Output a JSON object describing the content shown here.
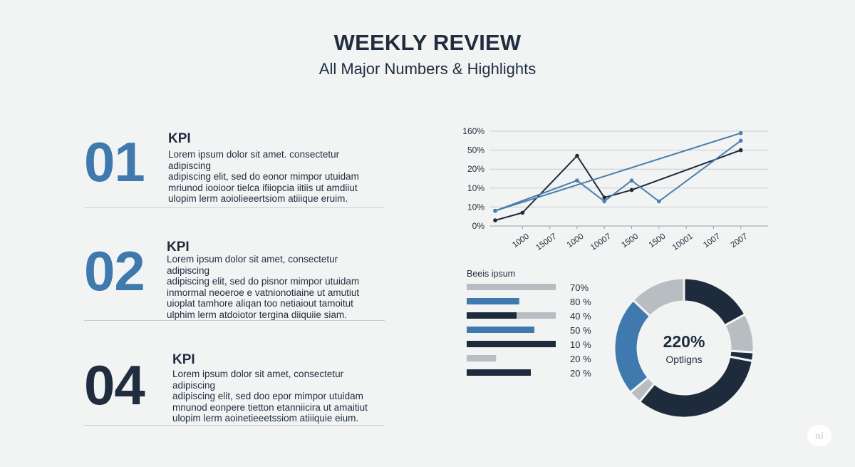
{
  "header": {
    "title": "WEEKLY REVIEW",
    "subtitle": "All Major Numbers & Highlights"
  },
  "kpis": [
    {
      "number": "01",
      "label": "KPI",
      "lines": [
        "Lorem ipsum dolor sit amet. consectetur adipiscing",
        "adipiscing elit, sed do eonor mimpor utuidam",
        "mriunod iooioor  tielca ifiiopcia iitiis ut amdiiut",
        "ulopim lerm aoiolieeertsiom atiiique eruim."
      ],
      "color": "#3f79ad"
    },
    {
      "number": "02",
      "label": "KPI",
      "lines": [
        "Lorem ipsum dolor sit amet, consectetur adipiscing",
        "adipiscing elit, sed do pisnor mimpor utuidam",
        "inmormal neoeroe e vatnionotiaine ut amutiut",
        "uioplat tamhore aliqan too netiaiout tamoitut",
        "ulphim lerm atdoiotor tergina diiquiie siam."
      ],
      "color": "#3f79ad"
    },
    {
      "number": "04",
      "label": "KPI",
      "lines": [
        "Lorem ipsum dolor sit amet, consectetur adipiscing",
        "adipiscing elit, sed doo epor mimpor utuidam",
        "mnunod eonpere tietton etanniicira ut amaitiut",
        "ulopim lerm aoinetieeetssiom atiiiquie eium."
      ],
      "color": "#1f2d3f"
    }
  ],
  "chart_data": [
    {
      "type": "line",
      "categories": [
        "",
        "1000",
        "15007",
        "1000",
        "10007",
        "1500",
        "1500",
        "10001",
        "1007",
        "2007"
      ],
      "y_tick_labels": [
        "0%",
        "10%",
        "10%",
        "20%",
        "50%",
        "160%"
      ],
      "series": [
        {
          "color": "#1e2b3c",
          "values": [
            0.3,
            0.7,
            null,
            3.7,
            1.5,
            1.9,
            null,
            null,
            null,
            4.0
          ]
        },
        {
          "color": "#4a7fae",
          "values": [
            0.8,
            null,
            null,
            2.4,
            1.3,
            2.4,
            1.3,
            null,
            null,
            4.5
          ]
        },
        {
          "color": "#4a7fae",
          "values": [
            0.8,
            null,
            null,
            null,
            null,
            null,
            null,
            null,
            null,
            4.9
          ]
        }
      ],
      "grid": true
    },
    {
      "type": "bar",
      "title": "Beeis ipsum",
      "orientation": "horizontal",
      "categories": [
        "",
        "",
        "",
        "",
        "",
        "",
        ""
      ],
      "value_labels": [
        "70%",
        "80 %",
        "40 %",
        "50 %",
        "10 %",
        "20 %",
        "20 %"
      ],
      "series": [
        {
          "color": "#b8bdc1",
          "values": [
            1.0,
            0,
            0,
            0,
            0,
            0.33,
            0
          ]
        },
        {
          "color": "#3f79ad",
          "values": [
            0,
            0.59,
            0,
            0.76,
            0,
            0,
            0
          ]
        },
        {
          "color": "#1e2b3c",
          "values": [
            0,
            0,
            0.56,
            0,
            1.0,
            0,
            0.72
          ]
        },
        {
          "color": "#b8bdc1",
          "values": [
            0,
            0,
            0.44,
            0,
            0,
            0,
            0
          ]
        }
      ]
    },
    {
      "type": "pie",
      "center_value": "220%",
      "center_label": "Optligns",
      "slices": [
        {
          "value": 17,
          "color": "#1e2b3c"
        },
        {
          "value": 9,
          "color": "#b8bdc1"
        },
        {
          "value": 2,
          "color": "#1e2b3c"
        },
        {
          "value": 33,
          "color": "#1e2b3c"
        },
        {
          "value": 3,
          "color": "#b8bdc1"
        },
        {
          "value": 23,
          "color": "#3f79ad"
        },
        {
          "value": 13,
          "color": "#b8bdc1"
        }
      ]
    }
  ]
}
